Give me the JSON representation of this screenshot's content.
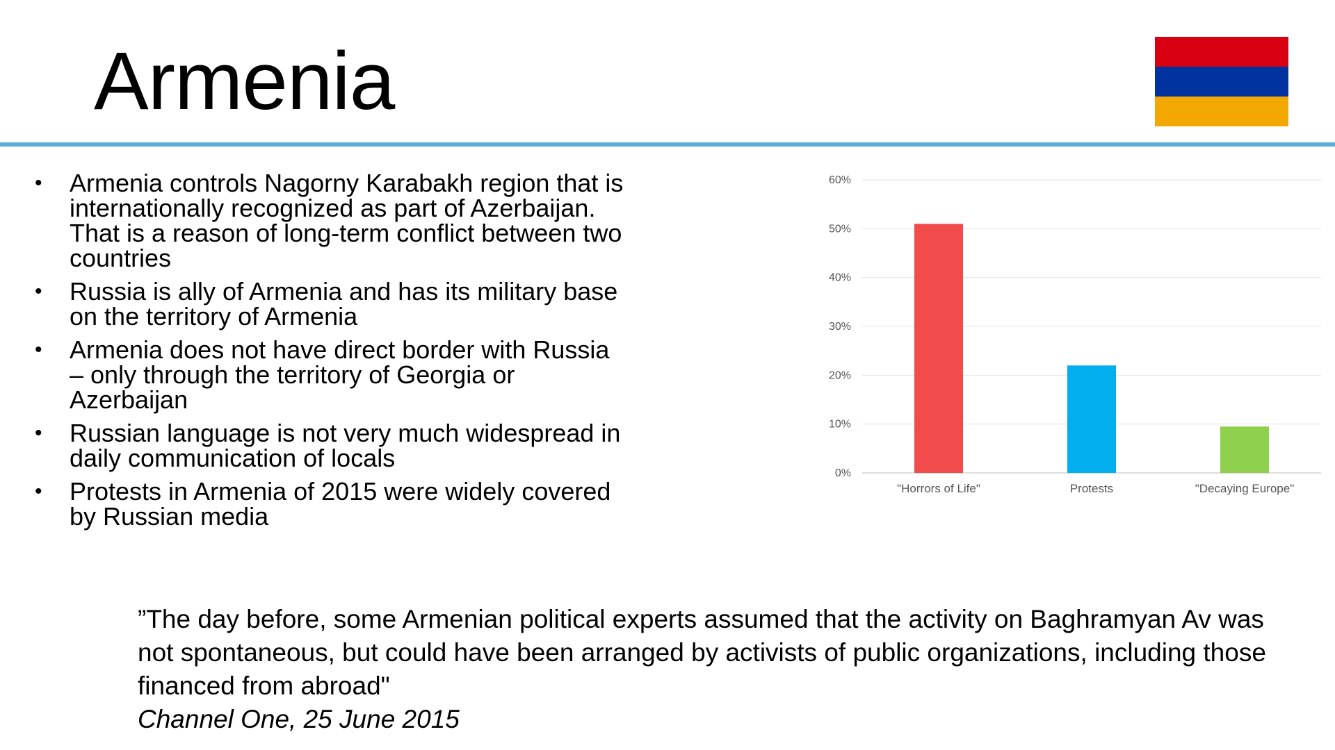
{
  "title": "Armenia",
  "flag": {
    "colors": [
      "#d90012",
      "#0033a0",
      "#f2a800"
    ]
  },
  "bullets": [
    "Armenia controls Nagorny Karabakh region that is internationally recognized as part of Azerbaijan. That is a reason of long-term conflict between two countries",
    "Russia is ally of Armenia and has its military base on the territory of Armenia",
    "Armenia does not have direct border with Russia – only through the territory of Georgia or Azerbaijan",
    "Russian language is not very much widespread in daily communication of locals",
    "Protests in Armenia of 2015 were widely covered by Russian media"
  ],
  "chart_data": {
    "type": "bar",
    "categories": [
      "\"Horrors of Life\"",
      "Protests",
      "\"Decaying Europe\""
    ],
    "values": [
      51,
      22,
      9.5
    ],
    "colors": [
      "#f24b4b",
      "#03aeef",
      "#8fd14f"
    ],
    "ylim": [
      0,
      60
    ],
    "yticks": [
      "0%",
      "10%",
      "20%",
      "30%",
      "40%",
      "50%",
      "60%"
    ],
    "grid": true,
    "title": "",
    "xlabel": "",
    "ylabel": ""
  },
  "quote": {
    "text": "”The day before, some Armenian political experts assumed that the activity on Baghramyan Av was not spontaneous, but could have been arranged by activists of public organizations, including those financed from abroad\"",
    "source": "Channel One, 25 June 2015"
  }
}
